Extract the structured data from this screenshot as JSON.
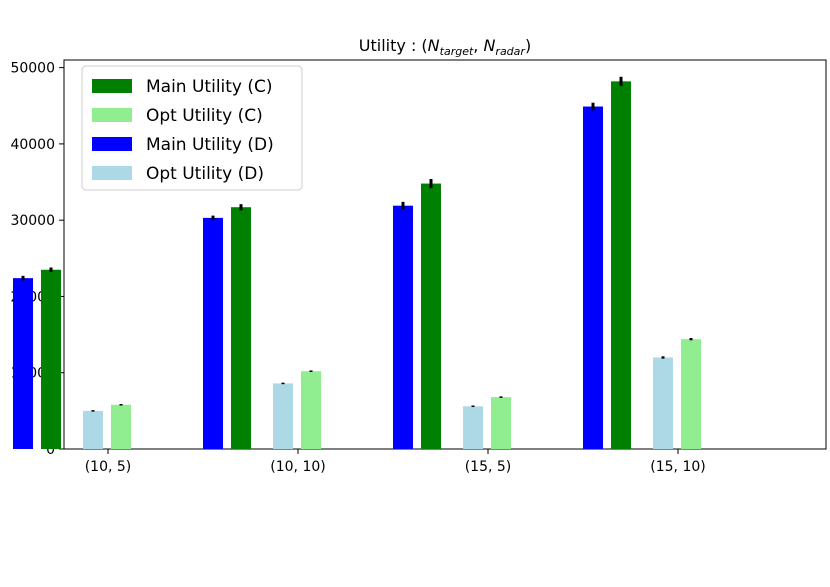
{
  "chart_data": {
    "type": "bar",
    "title": {
      "prefix": "Utility : (",
      "n1_base": "N",
      "n1_sub": "target",
      "sep": ", ",
      "n2_base": "N",
      "n2_sub": "radar",
      "suffix": ")"
    },
    "xlabel": "",
    "ylabel": "",
    "categories": [
      "(10, 5)",
      "(10, 10)",
      "(15, 5)",
      "(15, 10)"
    ],
    "ylim": [
      0,
      51000
    ],
    "yticks": [
      0,
      10000,
      20000,
      30000,
      40000,
      50000
    ],
    "grid": false,
    "legend_position": "top-left",
    "legend_order": [
      "Main Utility (C)",
      "Opt Utility (C)",
      "Main Utility (D)",
      "Opt Utility (D)"
    ],
    "series": [
      {
        "name": "Main Utility (D)",
        "color": "#0000ff",
        "values": [
          22400,
          30300,
          31900,
          44900
        ],
        "errors": [
          300,
          300,
          500,
          500
        ]
      },
      {
        "name": "Main Utility (C)",
        "color": "#008000",
        "values": [
          23500,
          31700,
          34800,
          48200
        ],
        "errors": [
          300,
          400,
          600,
          600
        ]
      },
      {
        "name": "Opt Utility (D)",
        "color": "#add8e6",
        "values": [
          5000,
          8600,
          5600,
          12000
        ],
        "errors": [
          100,
          100,
          100,
          150
        ]
      },
      {
        "name": "Opt Utility (C)",
        "color": "#90ee90",
        "values": [
          5800,
          10200,
          6800,
          14400
        ],
        "errors": [
          100,
          100,
          100,
          150
        ]
      }
    ]
  }
}
